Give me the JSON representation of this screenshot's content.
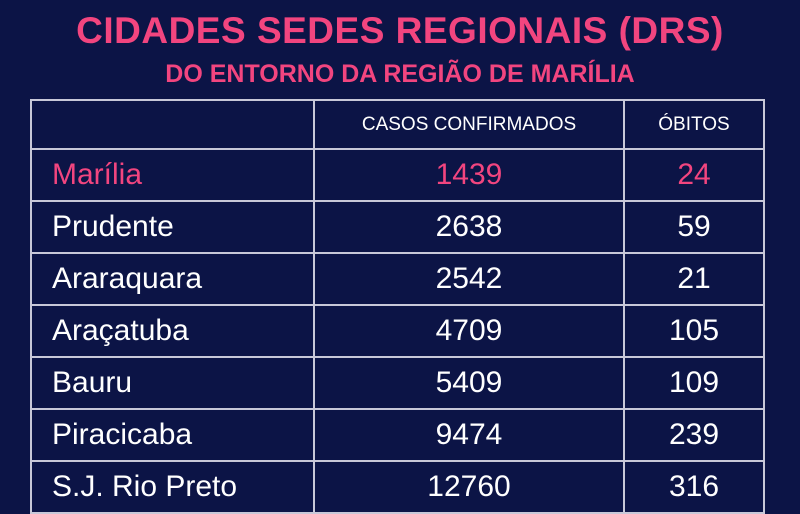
{
  "title": "CIDADES SEDES REGIONAIS (DRS)",
  "subtitle": "DO ENTORNO DA REGIÃO DE MARÍLIA",
  "colors": {
    "background": "#0c1446",
    "accent": "#f2457f",
    "text": "#ffffff"
  },
  "table": {
    "headers": [
      "",
      "CASOS CONFIRMADOS",
      "ÓBITOS"
    ],
    "rows": [
      {
        "city": "Marília",
        "cases": "1439",
        "deaths": "24"
      },
      {
        "city": "Prudente",
        "cases": "2638",
        "deaths": "59"
      },
      {
        "city": "Araraquara",
        "cases": "2542",
        "deaths": "21"
      },
      {
        "city": "Araçatuba",
        "cases": "4709",
        "deaths": "105"
      },
      {
        "city": "Bauru",
        "cases": "5409",
        "deaths": "109"
      },
      {
        "city": "Piracicaba",
        "cases": "9474",
        "deaths": "239"
      },
      {
        "city": "S.J. Rio Preto",
        "cases": "12760",
        "deaths": "316"
      }
    ]
  }
}
